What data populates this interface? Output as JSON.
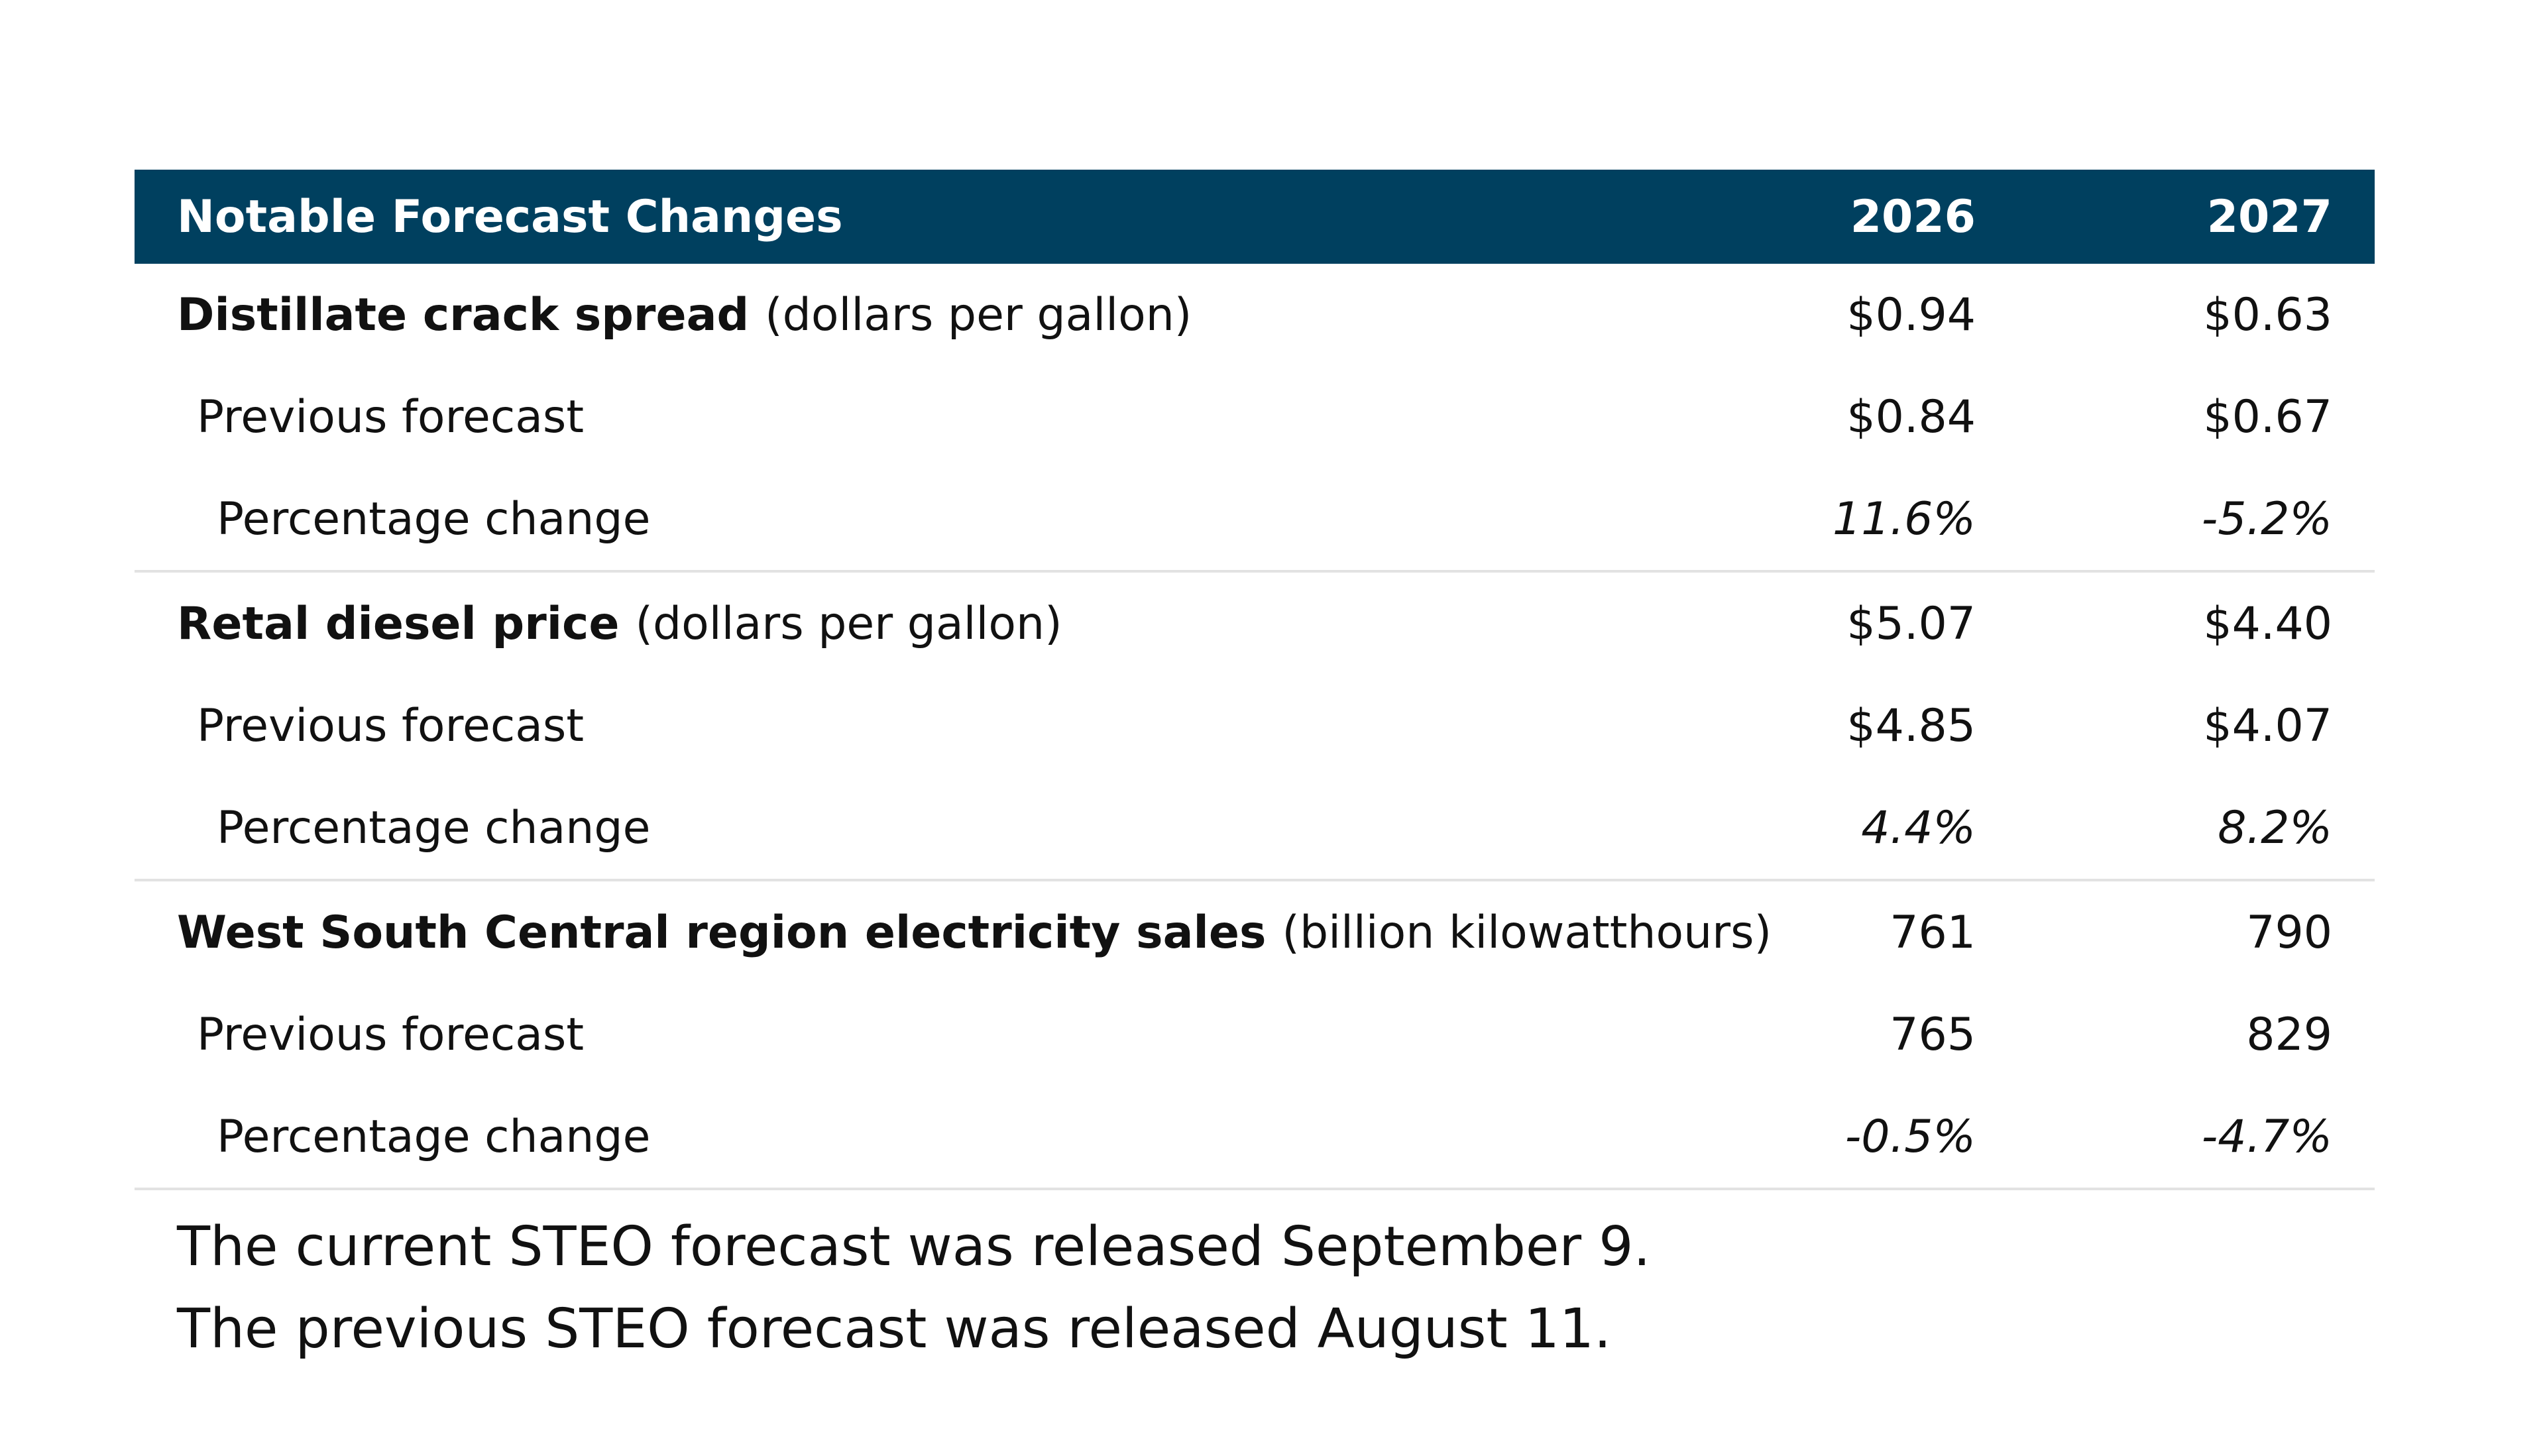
{
  "header": {
    "title": "Notable Forecast Changes",
    "col_2026": "2026",
    "col_2027": "2027"
  },
  "groups": [
    {
      "name": "Distillate crack spread",
      "unit": "(dollars per gallon)",
      "values": [
        "$0.94",
        "$0.63"
      ],
      "previous_label": "Previous forecast",
      "previous": [
        "$0.84",
        "$0.67"
      ],
      "pct_label": "Percentage change",
      "pct": [
        "11.6%",
        "-5.2%"
      ]
    },
    {
      "name": "Retal diesel price",
      "unit": "(dollars per gallon)",
      "values": [
        "$5.07",
        "$4.40"
      ],
      "previous_label": "Previous forecast",
      "previous": [
        "$4.85",
        "$4.07"
      ],
      "pct_label": "Percentage change",
      "pct": [
        "4.4%",
        "8.2%"
      ]
    },
    {
      "name": "West South Central region electricity sales",
      "unit": "(billion kilowatthours)",
      "values": [
        "761",
        "790"
      ],
      "previous_label": "Previous forecast",
      "previous": [
        "765",
        "829"
      ],
      "pct_label": "Percentage change",
      "pct": [
        "-0.5%",
        "-4.7%"
      ]
    }
  ],
  "notes": {
    "current": "The current STEO forecast was released September 9.",
    "previous": "The previous STEO forecast was released August 11."
  }
}
